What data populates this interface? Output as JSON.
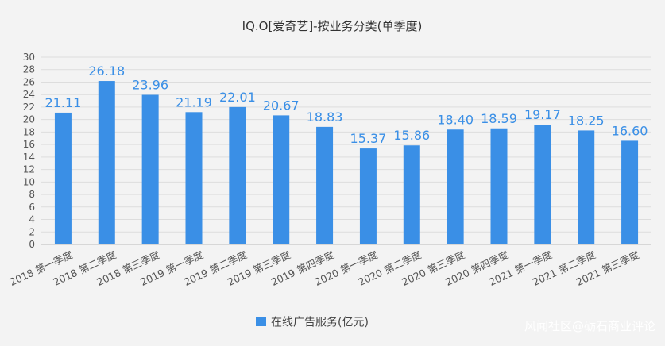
{
  "chart_data": {
    "type": "bar",
    "title": "IQ.O[爱奇艺]-按业务分类(单季度)",
    "categories": [
      "2018 第一季度",
      "2018 第二季度",
      "2018 第三季度",
      "2019 第一季度",
      "2019 第二季度",
      "2019 第三季度",
      "2019 第四季度",
      "2020 第一季度",
      "2020 第二季度",
      "2020 第三季度",
      "2020 第四季度",
      "2021 第一季度",
      "2021 第二季度",
      "2021 第三季度"
    ],
    "series": [
      {
        "name": "在线广告服务(亿元)",
        "values": [
          21.11,
          26.18,
          23.96,
          21.19,
          22.01,
          20.67,
          18.83,
          15.37,
          15.86,
          18.4,
          18.59,
          19.17,
          18.25,
          16.6
        ]
      }
    ],
    "value_labels": [
      "21.11",
      "26.18",
      "23.96",
      "21.19",
      "22.01",
      "20.67",
      "18.83",
      "15.37",
      "15.86",
      "18.40",
      "18.59",
      "19.17",
      "18.25",
      "16.60"
    ],
    "ylim": [
      0,
      30
    ],
    "yticks": [
      0,
      2,
      4,
      6,
      8,
      10,
      12,
      14,
      16,
      18,
      20,
      22,
      24,
      26,
      28,
      30
    ],
    "grid": true,
    "legend_position": "bottom",
    "colors": {
      "bar": "#3a8fe6",
      "grid": "#dddddd",
      "axis": "#bbbbbb"
    }
  },
  "watermark": "风闻社区@砺石商业评论"
}
